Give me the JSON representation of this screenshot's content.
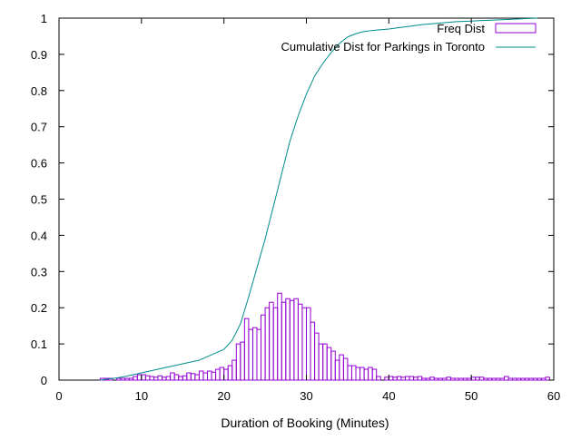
{
  "chart_data": {
    "type": "bar",
    "title": "",
    "xlabel": "Duration of Booking (Minutes)",
    "ylabel": "",
    "xlim": [
      0,
      60
    ],
    "ylim": [
      0,
      1
    ],
    "xticks": [
      "0",
      "10",
      "20",
      "30",
      "40",
      "50",
      "60"
    ],
    "yticks": [
      "0",
      "0.1",
      "0.2",
      "0.3",
      "0.4",
      "0.5",
      "0.6",
      "0.7",
      "0.8",
      "0.9",
      "1"
    ],
    "grid": false,
    "legend_position": "top-right",
    "series": [
      {
        "name": "Freq Dist",
        "kind": "histogram",
        "color": "#9400d3",
        "bin_width": 0.5,
        "x": [
          5,
          5.5,
          6,
          6.5,
          7,
          7.5,
          8,
          8.5,
          9,
          9.5,
          10,
          10.5,
          11,
          11.5,
          12,
          12.5,
          13,
          13.5,
          14,
          14.5,
          15,
          15.5,
          16,
          16.5,
          17,
          17.5,
          18,
          18.5,
          19,
          19.5,
          20,
          20.5,
          21,
          21.5,
          22,
          22.5,
          23,
          23.5,
          24,
          24.5,
          25,
          25.5,
          26,
          26.5,
          27,
          27.5,
          28,
          28.5,
          29,
          29.5,
          30,
          30.5,
          31,
          31.5,
          32,
          32.5,
          33,
          33.5,
          34,
          34.5,
          35,
          35.5,
          36,
          36.5,
          37,
          37.5,
          38,
          38.5,
          39,
          39.5,
          40,
          40.5,
          41,
          41.5,
          42,
          42.5,
          43,
          43.5,
          44,
          44.5,
          45,
          45.5,
          46,
          46.5,
          47,
          47.5,
          48,
          48.5,
          49,
          49.5,
          50,
          50.5,
          51,
          51.5,
          52,
          52.5,
          53,
          53.5,
          54,
          54.5,
          55,
          55.5,
          56,
          56.5,
          57,
          57.5,
          58,
          58.5,
          59
        ],
        "values": [
          0.005,
          0.005,
          0.005,
          0,
          0.005,
          0.005,
          0.005,
          0.005,
          0.01,
          0.015,
          0.015,
          0.012,
          0.01,
          0.008,
          0.012,
          0.008,
          0.01,
          0.02,
          0.015,
          0.01,
          0.012,
          0.02,
          0.018,
          0.015,
          0.025,
          0.02,
          0.025,
          0.022,
          0.03,
          0.035,
          0.03,
          0.04,
          0.055,
          0.1,
          0.105,
          0.17,
          0.14,
          0.145,
          0.14,
          0.18,
          0.2,
          0.215,
          0.2,
          0.24,
          0.215,
          0.225,
          0.22,
          0.225,
          0.21,
          0.2,
          0.2,
          0.16,
          0.13,
          0.1,
          0.1,
          0.09,
          0.08,
          0.055,
          0.07,
          0.06,
          0.04,
          0.04,
          0.035,
          0.035,
          0.03,
          0.035,
          0.03,
          0.01,
          0,
          0.008,
          0.01,
          0.008,
          0.01,
          0.008,
          0.01,
          0.01,
          0.008,
          0.01,
          0.005,
          0.005,
          0.008,
          0.005,
          0.005,
          0.005,
          0.008,
          0.005,
          0.005,
          0.005,
          0.005,
          0.005,
          0.008,
          0.008,
          0.008,
          0.005,
          0.005,
          0.005,
          0.005,
          0.005,
          0.01,
          0.005,
          0.005,
          0.005,
          0.005,
          0.005,
          0.005,
          0.005,
          0.005,
          0.005,
          0.008
        ]
      },
      {
        "name": "Cumulative Dist for Parkings in Toronto",
        "kind": "line",
        "color": "#008b8b",
        "x": [
          5,
          6,
          7,
          8,
          9,
          10,
          11,
          12,
          13,
          14,
          15,
          16,
          17,
          18,
          19,
          20,
          21,
          22,
          23,
          24,
          25,
          26,
          27,
          28,
          29,
          30,
          31,
          32,
          33,
          34,
          35,
          36,
          37,
          38,
          39,
          40,
          41,
          42,
          43,
          44,
          45,
          46,
          47,
          48,
          49,
          50,
          51,
          52,
          53,
          54,
          55,
          56,
          57,
          58
        ],
        "values": [
          0,
          0.003,
          0.006,
          0.01,
          0.015,
          0.02,
          0.025,
          0.03,
          0.035,
          0.04,
          0.045,
          0.05,
          0.055,
          0.065,
          0.075,
          0.085,
          0.11,
          0.155,
          0.23,
          0.31,
          0.39,
          0.48,
          0.57,
          0.66,
          0.73,
          0.79,
          0.84,
          0.875,
          0.905,
          0.93,
          0.948,
          0.957,
          0.963,
          0.966,
          0.968,
          0.97,
          0.973,
          0.976,
          0.979,
          0.982,
          0.984,
          0.986,
          0.988,
          0.99,
          0.991,
          0.992,
          0.993,
          0.994,
          0.995,
          0.996,
          0.997,
          0.998,
          0.999,
          1.0
        ]
      }
    ]
  }
}
